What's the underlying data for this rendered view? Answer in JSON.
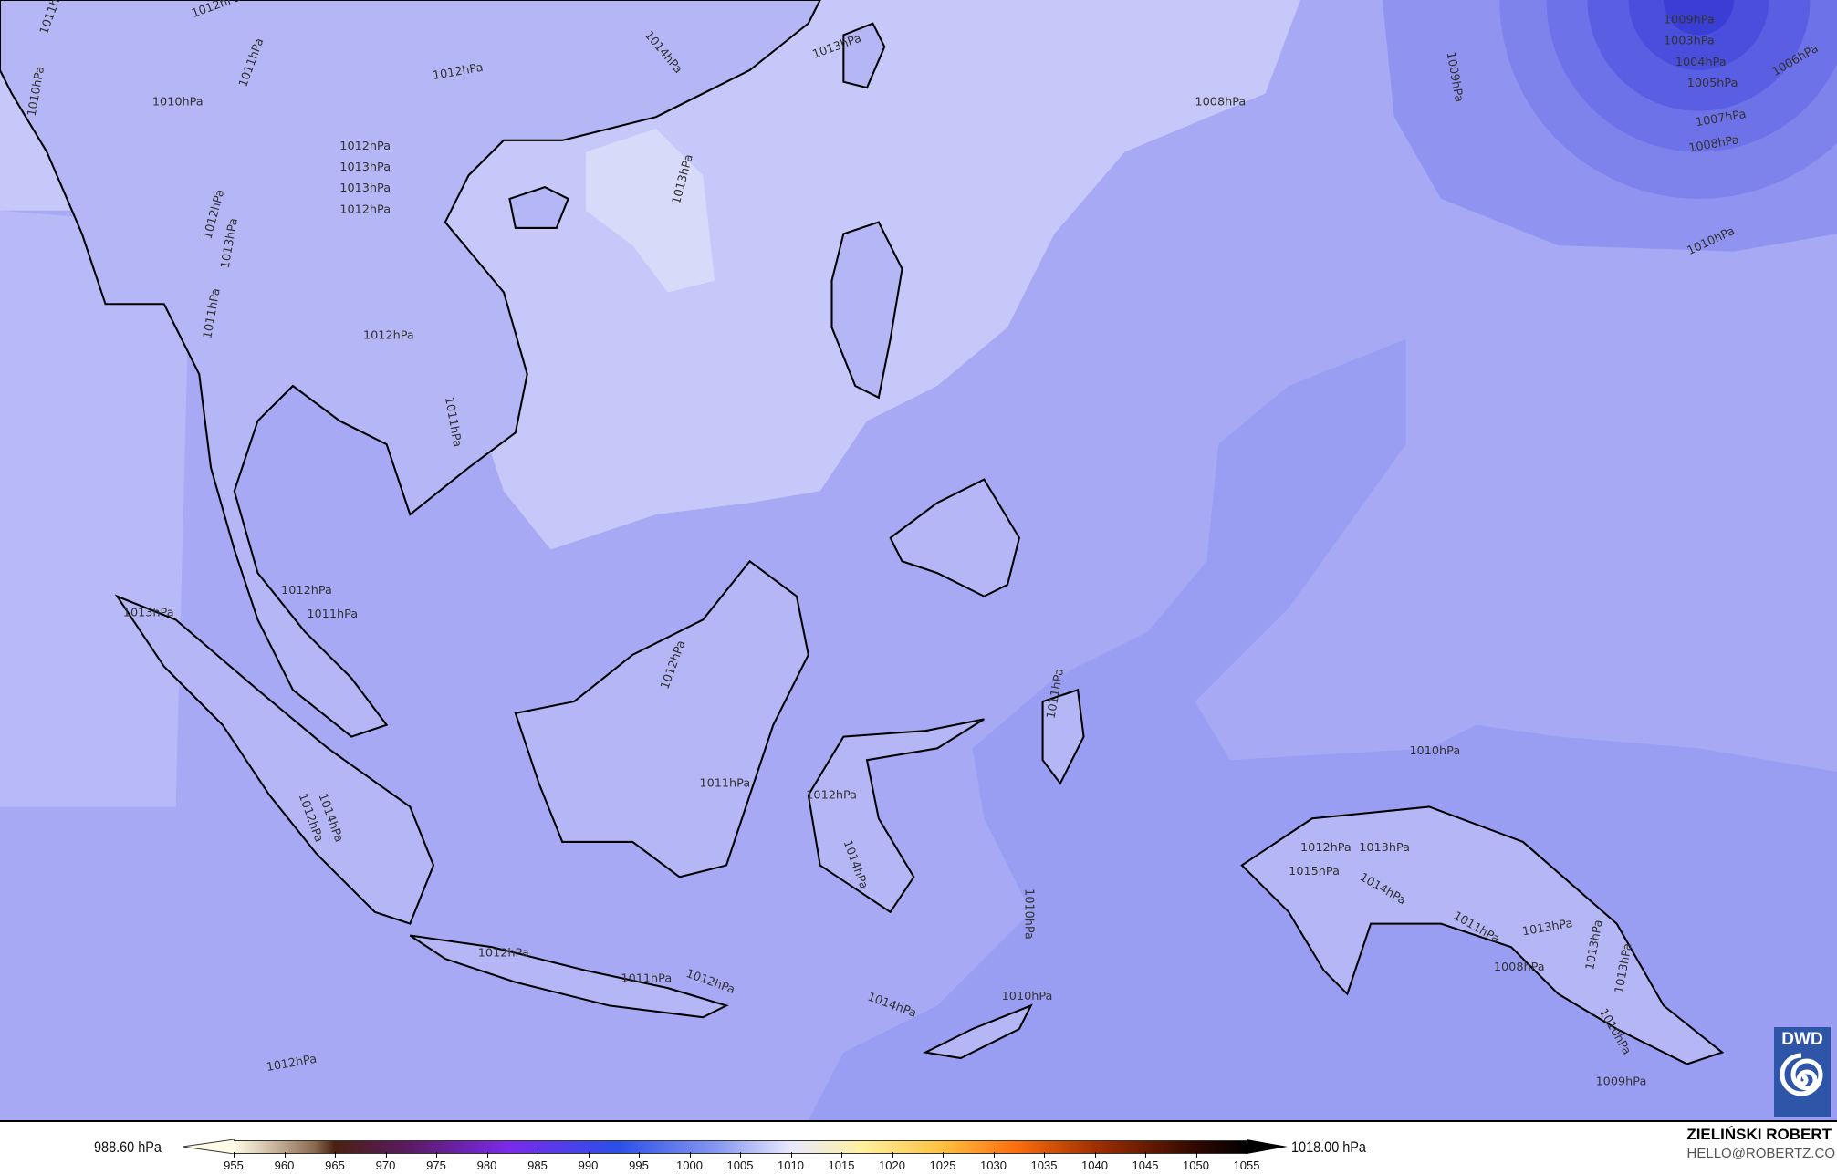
{
  "map": {
    "contour_labels": [
      "1012hPa",
      "1011hPa",
      "1012hPa",
      "1010hPa",
      "1010hPa",
      "1011hPa",
      "1009hPa",
      "1008hPa",
      "1014hPa",
      "1012hPa",
      "1013hPa",
      "1013hPa",
      "1012hPa",
      "1013hPa",
      "1013hPa",
      "1012hPa",
      "1013hPa",
      "1009hPa",
      "1006hPa",
      "1007hPa",
      "1008hPa",
      "1010hPa",
      "1005hPa",
      "1004hPa",
      "1003hPa",
      "1011hPa",
      "1012hPa",
      "1011hPa",
      "1013hPa",
      "1012hPa",
      "1011hPa",
      "1012hPa",
      "1011hPa",
      "1012hPa",
      "1014hPa",
      "1012hPa",
      "1011hPa",
      "1012hPa",
      "1012hPa",
      "1014hPa",
      "1010hPa",
      "1012hPa",
      "1010hPa",
      "1011hPa",
      "1010hPa",
      "1015hPa",
      "1012hPa",
      "1014hPa",
      "1013hPa",
      "1011hPa",
      "1013hPa",
      "1008hPa",
      "1010hPa",
      "1009hPa",
      "1013hPa",
      "1013hPa",
      "1014hPa"
    ],
    "colors": {
      "base": "#a7a9f5",
      "light": "#c6c8f9",
      "lighter": "#d8daf9",
      "dark": "#8e92ef",
      "low": "#5a5ee2",
      "land_outline": "#000000"
    }
  },
  "legend": {
    "min_label": "988.60 hPa",
    "max_label": "1018.00 hPa",
    "ticks": [
      "955",
      "960",
      "965",
      "970",
      "975",
      "980",
      "985",
      "990",
      "995",
      "1000",
      "1005",
      "1010",
      "1015",
      "1020",
      "1025",
      "1030",
      "1035",
      "1040",
      "1045",
      "1050",
      "1055"
    ]
  },
  "credits": {
    "author": "ZIELIŃSKI ROBERT",
    "email": "HELLO@ROBERTZ.CO",
    "logo_text": "DWD"
  }
}
